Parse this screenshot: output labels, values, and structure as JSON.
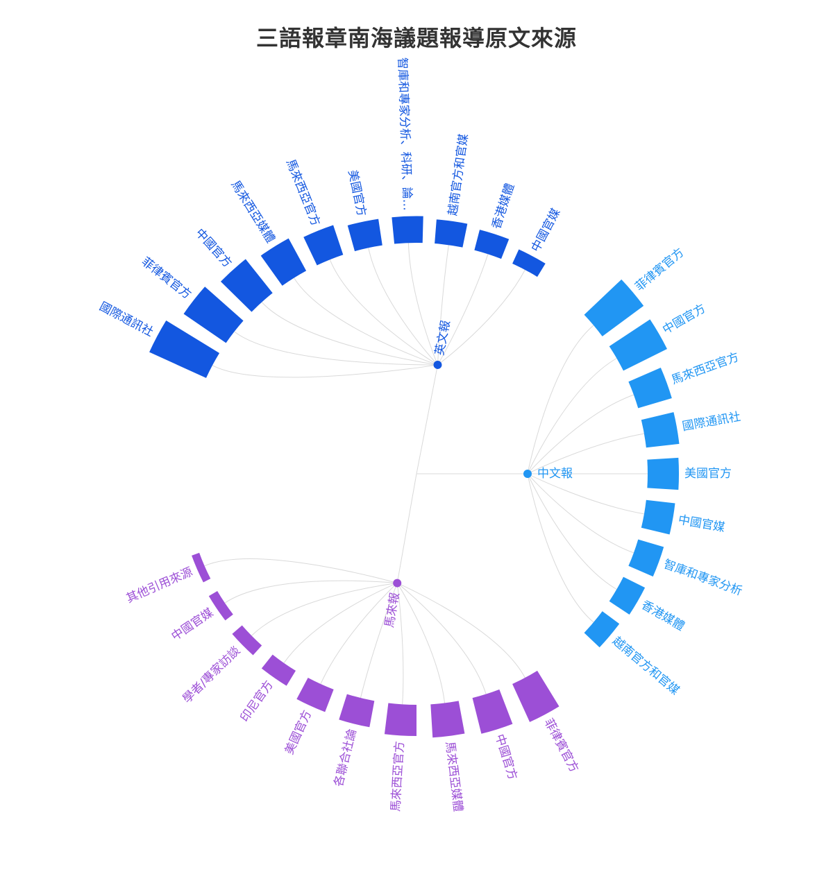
{
  "title": "三語報章南海議題報導原文來源",
  "chart_data": {
    "type": "radial-tree",
    "title": "三語報章南海議題報導原文來源",
    "groups": [
      {
        "name": "英文報",
        "color": "#1357e0",
        "items": [
          {
            "label": "國際通訊社",
            "value": 30
          },
          {
            "label": "菲律賓官方",
            "value": 20
          },
          {
            "label": "中國官方",
            "value": 14
          },
          {
            "label": "馬來西亞媒體",
            "value": 10
          },
          {
            "label": "馬來西亞官方",
            "value": 7
          },
          {
            "label": "美國官方",
            "value": 5
          },
          {
            "label": "智庫和專家分析、科研、論…",
            "value": 5
          },
          {
            "label": "越南官方和官媒",
            "value": 4
          },
          {
            "label": "香港媒體",
            "value": 3
          },
          {
            "label": "中國官媒",
            "value": 1.5
          }
        ]
      },
      {
        "name": "中文報",
        "color": "#2196f3",
        "items": [
          {
            "label": "菲律賓官方",
            "value": 20
          },
          {
            "label": "中國官方",
            "value": 18
          },
          {
            "label": "馬來西亞官方",
            "value": 9
          },
          {
            "label": "國際通訊社",
            "value": 8
          },
          {
            "label": "美國官方",
            "value": 7
          },
          {
            "label": "中國官媒",
            "value": 6
          },
          {
            "label": "智庫和專家分析",
            "value": 5
          },
          {
            "label": "香港媒體",
            "value": 4
          },
          {
            "label": "越南官方和官媒",
            "value": 3
          }
        ]
      },
      {
        "name": "馬來報",
        "color": "#9c4fd6",
        "items": [
          {
            "label": "菲律賓官方",
            "value": 13
          },
          {
            "label": "中國官方",
            "value": 10
          },
          {
            "label": "馬來西亞媒體",
            "value": 8
          },
          {
            "label": "馬來西亞官方",
            "value": 7
          },
          {
            "label": "各聯合社論",
            "value": 5
          },
          {
            "label": "美國官方",
            "value": 4
          },
          {
            "label": "印尼官方",
            "value": 2
          },
          {
            "label": "學者/專家訪談",
            "value": 1
          },
          {
            "label": "中國官媒",
            "value": 0.5
          },
          {
            "label": "其他引用來源",
            "value": 0.3
          }
        ]
      }
    ]
  }
}
